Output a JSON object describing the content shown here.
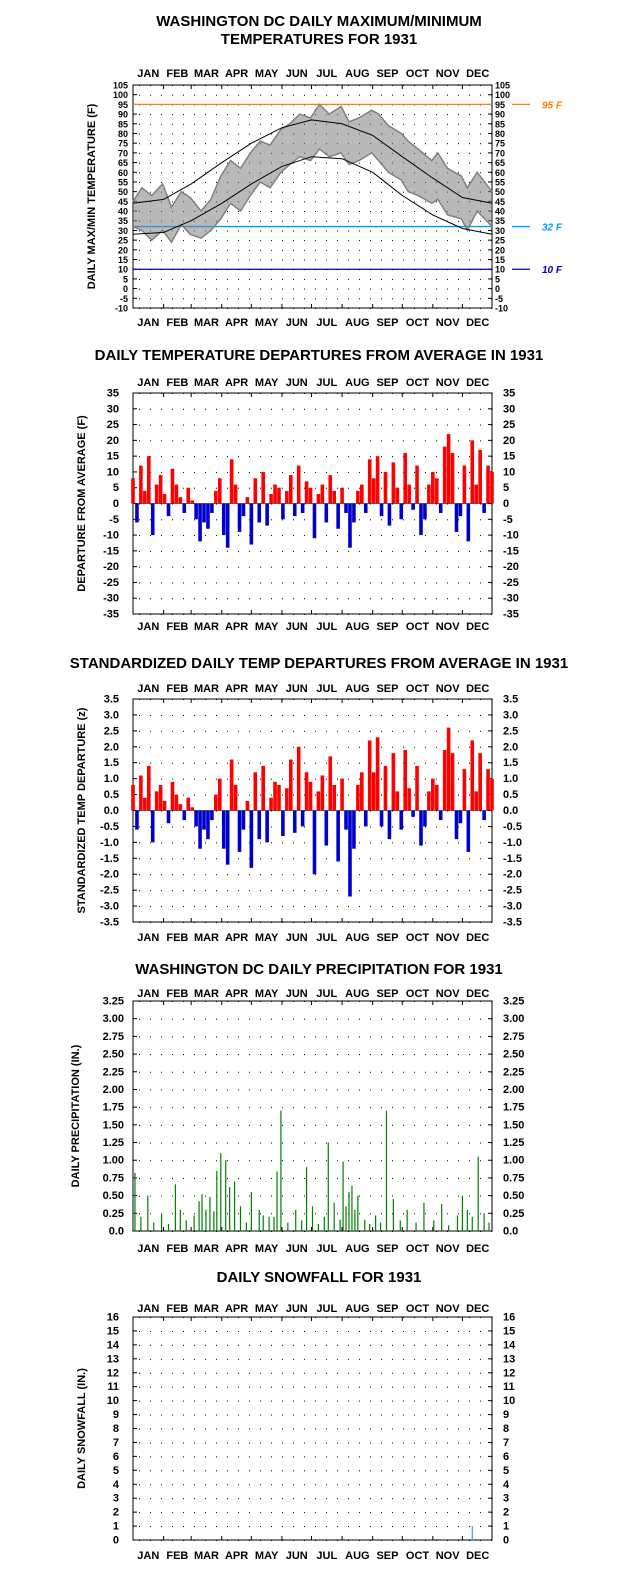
{
  "months": [
    "JAN",
    "FEB",
    "MAR",
    "APR",
    "MAY",
    "JUN",
    "JUL",
    "AUG",
    "SEP",
    "OCT",
    "NOV",
    "DEC"
  ],
  "colors": {
    "temp_series": "#808080",
    "normal_lines": "#000000",
    "line_95": "#ff8000",
    "line_32": "#0099ff",
    "line_10": "#0000c0",
    "positive": "#ff0000",
    "negative": "#0000cc",
    "precip": "#008000",
    "snow": "#3399ff"
  },
  "chart_data": [
    {
      "id": "maxmin",
      "type": "line",
      "title_line1": "WASHINGTON DC DAILY MAXIMUM/MINIMUM",
      "title_line2": "TEMPERATURES FOR 1931",
      "ylabel": "DAILY MAX/MIN TEMPERATURE (F)",
      "ylim": [
        -10,
        105
      ],
      "yticks": [
        "-10",
        "-5",
        "0",
        "5",
        "10",
        "15",
        "20",
        "25",
        "30",
        "35",
        "40",
        "45",
        "50",
        "55",
        "60",
        "65",
        "70",
        "75",
        "80",
        "85",
        "90",
        "95",
        "100",
        "105"
      ],
      "ref_lines": [
        {
          "value": 95,
          "label": "95 F"
        },
        {
          "value": 32,
          "label": "32 F"
        },
        {
          "value": 10,
          "label": "10 F"
        }
      ],
      "normal_high": {
        "x": [
          1,
          32,
          60,
          91,
          121,
          152,
          182,
          213,
          244,
          274,
          305,
          335,
          365
        ],
        "y": [
          44,
          46,
          54,
          65,
          75,
          83,
          87,
          85,
          79,
          68,
          57,
          47,
          44
        ]
      },
      "normal_low": {
        "x": [
          1,
          32,
          60,
          91,
          121,
          152,
          182,
          213,
          244,
          274,
          305,
          335,
          365
        ],
        "y": [
          28,
          29,
          35,
          44,
          54,
          63,
          68,
          67,
          60,
          48,
          38,
          31,
          28
        ]
      },
      "series": [
        {
          "name": "max",
          "x": [
            1,
            10,
            20,
            31,
            40,
            50,
            59,
            70,
            80,
            90,
            100,
            110,
            120,
            130,
            140,
            151,
            160,
            170,
            181,
            190,
            200,
            212,
            220,
            230,
            243,
            250,
            260,
            273,
            280,
            290,
            304,
            310,
            320,
            334,
            340,
            350,
            365
          ],
          "y": [
            45,
            52,
            48,
            54,
            42,
            50,
            47,
            40,
            46,
            58,
            66,
            62,
            70,
            76,
            74,
            82,
            85,
            90,
            88,
            95,
            90,
            94,
            86,
            88,
            92,
            90,
            84,
            80,
            76,
            72,
            66,
            70,
            62,
            58,
            52,
            60,
            50
          ]
        },
        {
          "name": "min",
          "x": [
            1,
            10,
            20,
            31,
            40,
            50,
            59,
            70,
            80,
            90,
            100,
            110,
            120,
            130,
            140,
            151,
            160,
            170,
            181,
            190,
            200,
            212,
            220,
            230,
            243,
            250,
            260,
            273,
            280,
            290,
            304,
            310,
            320,
            334,
            340,
            350,
            365
          ],
          "y": [
            32,
            30,
            25,
            30,
            24,
            33,
            28,
            26,
            30,
            36,
            44,
            40,
            48,
            55,
            52,
            60,
            64,
            68,
            66,
            72,
            68,
            70,
            64,
            66,
            70,
            66,
            60,
            56,
            50,
            48,
            44,
            46,
            38,
            36,
            30,
            40,
            32
          ]
        }
      ]
    },
    {
      "id": "depart",
      "type": "bar",
      "title": "DAILY TEMPERATURE DEPARTURES FROM AVERAGE IN 1931",
      "ylabel": "DEPARTURE FROM AVERAGE (F)",
      "ylim": [
        -35,
        35
      ],
      "yticks": [
        "-35",
        "-30",
        "-25",
        "-20",
        "-15",
        "-10",
        "-5",
        "0",
        "5",
        "10",
        "15",
        "20",
        "25",
        "30",
        "35"
      ],
      "x": [
        1,
        5,
        9,
        13,
        17,
        21,
        25,
        29,
        33,
        37,
        41,
        45,
        49,
        53,
        57,
        61,
        65,
        69,
        73,
        77,
        81,
        85,
        89,
        93,
        97,
        101,
        105,
        109,
        113,
        117,
        121,
        125,
        129,
        133,
        137,
        141,
        145,
        149,
        153,
        157,
        161,
        165,
        169,
        173,
        177,
        181,
        185,
        189,
        193,
        197,
        201,
        205,
        209,
        213,
        217,
        221,
        225,
        229,
        233,
        237,
        241,
        245,
        249,
        253,
        257,
        261,
        265,
        269,
        273,
        277,
        281,
        285,
        289,
        293,
        297,
        301,
        305,
        309,
        313,
        317,
        321,
        325,
        329,
        333,
        337,
        341,
        345,
        349,
        353,
        357,
        361,
        365
      ],
      "values": [
        8,
        -6,
        12,
        4,
        15,
        -10,
        6,
        9,
        3,
        -4,
        11,
        6,
        2,
        -3,
        5,
        1,
        -5,
        -12,
        -6,
        -8,
        -3,
        4,
        8,
        -10,
        -14,
        14,
        6,
        -9,
        -4,
        2,
        -13,
        8,
        -6,
        10,
        -7,
        3,
        6,
        5,
        -5,
        4,
        9,
        -4,
        12,
        -3,
        7,
        5,
        -11,
        3,
        6,
        -6,
        9,
        4,
        -8,
        5,
        -3,
        -14,
        -6,
        4,
        6,
        -3,
        14,
        8,
        15,
        -4,
        10,
        -7,
        13,
        5,
        -5,
        16,
        6,
        -2,
        12,
        -10,
        -5,
        6,
        10,
        8,
        -3,
        18,
        22,
        16,
        -9,
        -4,
        12,
        -12,
        20,
        6,
        17,
        -3,
        12,
        10
      ]
    },
    {
      "id": "stdz",
      "type": "bar",
      "title": "STANDARDIZED DAILY TEMP DEPARTURES FROM AVERAGE IN 1931",
      "ylabel": "STANDARDIZED TEMP DEPARTURE (z)",
      "ylim": [
        -3.5,
        3.5
      ],
      "yticks": [
        "-3.5",
        "-3.0",
        "-2.5",
        "-2.0",
        "-1.5",
        "-1.0",
        "-0.5",
        "0.0",
        "0.5",
        "1.0",
        "1.5",
        "2.0",
        "2.5",
        "3.0",
        "3.5"
      ],
      "x": [
        1,
        5,
        9,
        13,
        17,
        21,
        25,
        29,
        33,
        37,
        41,
        45,
        49,
        53,
        57,
        61,
        65,
        69,
        73,
        77,
        81,
        85,
        89,
        93,
        97,
        101,
        105,
        109,
        113,
        117,
        121,
        125,
        129,
        133,
        137,
        141,
        145,
        149,
        153,
        157,
        161,
        165,
        169,
        173,
        177,
        181,
        185,
        189,
        193,
        197,
        201,
        205,
        209,
        213,
        217,
        221,
        225,
        229,
        233,
        237,
        241,
        245,
        249,
        253,
        257,
        261,
        265,
        269,
        273,
        277,
        281,
        285,
        289,
        293,
        297,
        301,
        305,
        309,
        313,
        317,
        321,
        325,
        329,
        333,
        337,
        341,
        345,
        349,
        353,
        357,
        361,
        365
      ],
      "values": [
        0.8,
        -0.6,
        1.1,
        0.4,
        1.4,
        -1.0,
        0.6,
        0.8,
        0.3,
        -0.4,
        0.9,
        0.5,
        0.2,
        -0.3,
        0.4,
        0.1,
        -0.5,
        -1.2,
        -0.6,
        -0.9,
        -0.3,
        0.5,
        1.0,
        -1.2,
        -1.7,
        1.6,
        0.8,
        -1.3,
        -0.6,
        0.3,
        -1.8,
        1.2,
        -0.9,
        1.4,
        -1.0,
        0.4,
        0.9,
        0.8,
        -0.8,
        0.7,
        1.6,
        -0.7,
        2.0,
        -0.5,
        1.2,
        0.9,
        -2.0,
        0.6,
        1.1,
        -1.1,
        1.7,
        0.8,
        -1.6,
        1.0,
        -0.6,
        -2.7,
        -1.2,
        0.8,
        1.2,
        -0.5,
        2.2,
        1.2,
        2.3,
        -0.5,
        1.4,
        -0.9,
        1.8,
        0.6,
        -0.6,
        1.9,
        0.7,
        -0.2,
        1.4,
        -1.1,
        -0.5,
        0.6,
        1.0,
        0.8,
        -0.3,
        1.9,
        2.6,
        1.8,
        -0.9,
        -0.4,
        1.3,
        -1.3,
        2.2,
        0.6,
        1.8,
        -0.3,
        1.3,
        1.0
      ]
    },
    {
      "id": "precip",
      "type": "bar",
      "title": "WASHINGTON DC DAILY PRECIPITATION FOR 1931",
      "ylabel": "DAILY PRECIPITATION (IN.)",
      "ylim": [
        0,
        3.25
      ],
      "yticks": [
        "0.0",
        "0.25",
        "0.50",
        "0.75",
        "1.00",
        "1.25",
        "1.50",
        "1.75",
        "2.00",
        "2.25",
        "2.50",
        "2.75",
        "3.00",
        "3.25"
      ],
      "x": [
        3,
        9,
        16,
        22,
        30,
        37,
        44,
        49,
        55,
        63,
        68,
        71,
        75,
        79,
        83,
        86,
        90,
        95,
        99,
        104,
        110,
        116,
        121,
        129,
        133,
        139,
        144,
        147,
        151,
        158,
        166,
        172,
        177,
        183,
        189,
        195,
        199,
        205,
        211,
        214,
        217,
        220,
        223,
        226,
        229,
        236,
        241,
        247,
        252,
        258,
        265,
        272,
        279,
        288,
        296,
        306,
        314,
        321,
        330,
        335,
        340,
        345,
        351,
        357,
        362
      ],
      "values": [
        0.82,
        0.2,
        0.5,
        0.12,
        0.25,
        0.1,
        0.66,
        0.3,
        0.15,
        0.22,
        0.42,
        0.52,
        0.3,
        0.48,
        0.28,
        0.85,
        1.1,
        1.0,
        0.62,
        0.7,
        0.35,
        0.12,
        0.55,
        0.3,
        0.22,
        0.2,
        0.2,
        0.84,
        1.7,
        0.12,
        0.3,
        0.15,
        0.9,
        0.35,
        0.1,
        0.2,
        1.25,
        0.4,
        0.16,
        0.98,
        0.35,
        0.55,
        0.64,
        0.3,
        0.5,
        0.16,
        0.1,
        0.22,
        0.12,
        1.7,
        0.45,
        0.15,
        0.3,
        0.12,
        0.4,
        0.15,
        0.38,
        0.08,
        0.22,
        0.5,
        0.3,
        0.2,
        1.05,
        0.25,
        0.12
      ]
    },
    {
      "id": "snow",
      "type": "bar",
      "title": "DAILY SNOWFALL FOR 1931",
      "ylabel": "DAILY SNOWFALL (IN.)",
      "ylim": [
        0,
        16
      ],
      "yticks": [
        "0",
        "1",
        "2",
        "3",
        "4",
        "5",
        "6",
        "7",
        "8",
        "9",
        "10",
        "11",
        "12",
        "13",
        "14",
        "15",
        "16"
      ],
      "x": [
        345
      ],
      "values": [
        1.0
      ]
    }
  ]
}
